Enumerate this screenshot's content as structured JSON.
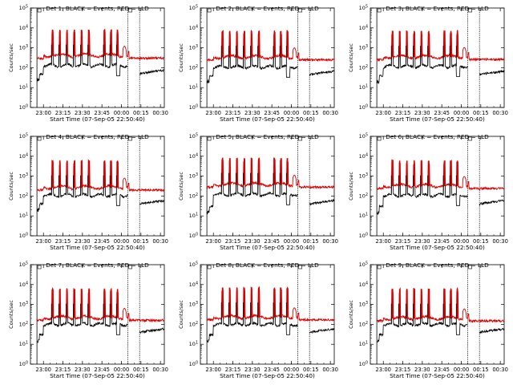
{
  "chart_data": {
    "type": "line",
    "layout": {
      "rows": 3,
      "cols": 3
    },
    "x_axis": {
      "label": "Start Time (07-Sep-05 22:50:40)",
      "tick_labels": [
        "23:00",
        "23:15",
        "23:30",
        "23:45",
        "00:00",
        "00:15",
        "00:30"
      ],
      "tick_minutes": [
        10,
        25,
        40,
        55,
        70,
        85,
        100
      ],
      "range_minutes": [
        0,
        103
      ]
    },
    "y_axis": {
      "label": "Counts/sec",
      "scale": "log",
      "range": [
        1,
        100000
      ],
      "tick_labels": [
        "10^0",
        "10^1",
        "10^2",
        "10^3",
        "10^4",
        "10^5"
      ]
    },
    "markers_minutes": [
      5,
      75,
      84
    ],
    "series_colors": {
      "events": "#000000",
      "lld": "#dd0000"
    },
    "panels": [
      {
        "title": "Det 1: BLACK = Events, RED = LLD",
        "lld_base": 300,
        "evt_base": 130,
        "evt_pre": 25,
        "evt_post": 50,
        "burst_count": 9,
        "peak": 8000
      },
      {
        "title": "Det 2: BLACK = Events, RED = LLD",
        "lld_base": 250,
        "evt_base": 110,
        "evt_pre": 20,
        "evt_post": 45,
        "burst_count": 9,
        "peak": 7000
      },
      {
        "title": "Det 3: BLACK = Events, RED = LLD",
        "lld_base": 260,
        "evt_base": 120,
        "evt_pre": 20,
        "evt_post": 45,
        "burst_count": 9,
        "peak": 7000
      },
      {
        "title": "Det 4: BLACK = Events, RED = LLD",
        "lld_base": 200,
        "evt_base": 110,
        "evt_pre": 20,
        "evt_post": 40,
        "burst_count": 9,
        "peak": 6000
      },
      {
        "title": "Det 5: BLACK = Events, RED = LLD",
        "lld_base": 280,
        "evt_base": 120,
        "evt_pre": 15,
        "evt_post": 40,
        "burst_count": 9,
        "peak": 8000
      },
      {
        "title": "Det 6: BLACK = Events, RED = LLD",
        "lld_base": 240,
        "evt_base": 110,
        "evt_pre": 15,
        "evt_post": 40,
        "burst_count": 9,
        "peak": 6000
      },
      {
        "title": "Det 7: BLACK = Events, RED = LLD",
        "lld_base": 160,
        "evt_base": 100,
        "evt_pre": 15,
        "evt_post": 40,
        "burst_count": 9,
        "peak": 6000
      },
      {
        "title": "Det 8: BLACK = Events, RED = LLD",
        "lld_base": 170,
        "evt_base": 100,
        "evt_pre": 15,
        "evt_post": 40,
        "burst_count": 9,
        "peak": 7000
      },
      {
        "title": "Det 9: BLACK = Events, RED = LLD",
        "lld_base": 150,
        "evt_base": 100,
        "evt_pre": 15,
        "evt_post": 40,
        "burst_count": 9,
        "peak": 6000
      }
    ]
  }
}
